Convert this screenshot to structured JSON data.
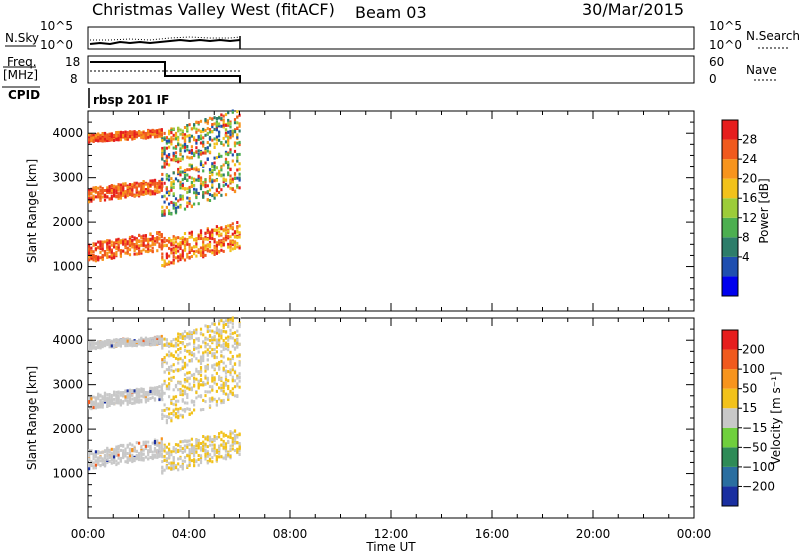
{
  "header": {
    "station": "Christmas Valley West (fitACF)",
    "beam": "Beam 03",
    "date": "30/Mar/2015"
  },
  "noise_panel": {
    "left_label": "N.Sky",
    "right_label": "N.Search",
    "ticks_left": [
      "10^5",
      "10^0"
    ],
    "ticks_right": [
      "10^5",
      "10^0"
    ]
  },
  "freq_panel": {
    "left_label_1": "Freq.",
    "left_label_2": "[MHz]",
    "right_label": "Nave",
    "ticks_left": [
      "18",
      "8"
    ],
    "ticks_right": [
      "60",
      "0"
    ]
  },
  "cpid": {
    "label": "CPID",
    "program": "rbsp 201 IF"
  },
  "x_axis": {
    "label": "Time UT",
    "ticks": [
      "00:00",
      "04:00",
      "08:00",
      "12:00",
      "16:00",
      "20:00",
      "00:00"
    ]
  },
  "chart_data": [
    {
      "type": "heatmap",
      "quantity": "Power",
      "ylabel": "Slant Range [km]",
      "xlabel": "Time UT",
      "xlim_hours": [
        0,
        24
      ],
      "ylim": [
        0,
        4500
      ],
      "y_ticks": [
        1000,
        2000,
        3000,
        4000
      ],
      "colorbar": {
        "label": "Power [dB]",
        "ticks": [
          "28",
          "24",
          "20",
          "16",
          "12",
          "8",
          "4"
        ],
        "colors": [
          "#0000ee",
          "#1f4fb0",
          "#2d7d6a",
          "#4caf50",
          "#9ccc39",
          "#f2c21b",
          "#f7941d",
          "#f05a1e",
          "#e61e1e"
        ]
      },
      "data_window_hours": [
        0.0,
        6.0
      ],
      "echo_bands": [
        {
          "t_start": 0.0,
          "t_end": 2.9,
          "range_start": 1100,
          "range_end": 1700,
          "level": "high"
        },
        {
          "t_start": 2.9,
          "t_end": 6.0,
          "range_start": 1000,
          "range_end": 1900,
          "level": "mid"
        },
        {
          "t_start": 0.0,
          "t_end": 2.9,
          "range_start": 2450,
          "range_end": 2900,
          "level": "high"
        },
        {
          "t_start": 2.9,
          "t_end": 6.0,
          "range_start": 2100,
          "range_end": 3500,
          "level": "mixed"
        },
        {
          "t_start": 0.0,
          "t_end": 2.9,
          "range_start": 3800,
          "range_end": 4050,
          "level": "high"
        },
        {
          "t_start": 2.9,
          "t_end": 6.0,
          "range_start": 3200,
          "range_end": 4400,
          "level": "mixed"
        }
      ]
    },
    {
      "type": "heatmap",
      "quantity": "Velocity",
      "ylabel": "Slant Range [km]",
      "xlabel": "Time UT",
      "xlim_hours": [
        0,
        24
      ],
      "ylim": [
        0,
        4500
      ],
      "y_ticks": [
        1000,
        2000,
        3000,
        4000
      ],
      "colorbar": {
        "label": "Velocity [m s⁻¹]",
        "ticks": [
          "200",
          "100",
          "50",
          "15",
          "−15",
          "−50",
          "−100",
          "−200"
        ],
        "colors": [
          "#1a2fa0",
          "#2a6ea0",
          "#2e8b57",
          "#6fcf3d",
          "#c8c8c8",
          "#f2c21b",
          "#f7941d",
          "#f05a1e",
          "#e61e1e"
        ]
      },
      "data_window_hours": [
        0.0,
        6.0
      ]
    }
  ]
}
